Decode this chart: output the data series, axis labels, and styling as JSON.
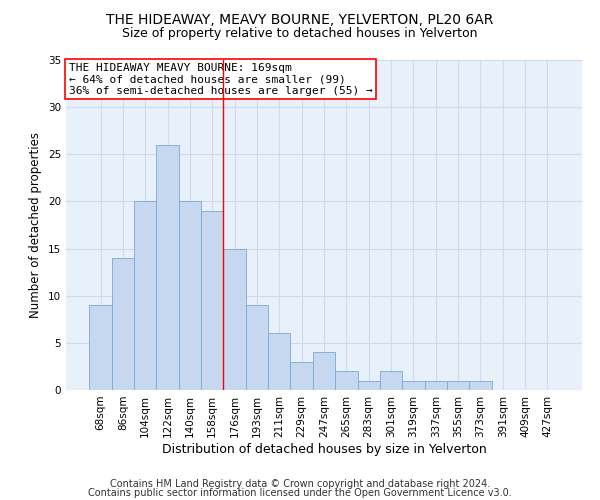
{
  "title1": "THE HIDEAWAY, MEAVY BOURNE, YELVERTON, PL20 6AR",
  "title2": "Size of property relative to detached houses in Yelverton",
  "xlabel": "Distribution of detached houses by size in Yelverton",
  "ylabel": "Number of detached properties",
  "categories": [
    "68sqm",
    "86sqm",
    "104sqm",
    "122sqm",
    "140sqm",
    "158sqm",
    "176sqm",
    "193sqm",
    "211sqm",
    "229sqm",
    "247sqm",
    "265sqm",
    "283sqm",
    "301sqm",
    "319sqm",
    "337sqm",
    "355sqm",
    "373sqm",
    "391sqm",
    "409sqm",
    "427sqm"
  ],
  "values": [
    9,
    14,
    20,
    26,
    20,
    19,
    15,
    9,
    6,
    3,
    4,
    2,
    1,
    2,
    1,
    1,
    1,
    1,
    0,
    0,
    0
  ],
  "bar_color": "#c5d8f0",
  "bar_edge_color": "#7aa8d4",
  "bar_width": 1.0,
  "vline_x": 5.5,
  "vline_color": "red",
  "ylim": [
    0,
    35
  ],
  "yticks": [
    0,
    5,
    10,
    15,
    20,
    25,
    30,
    35
  ],
  "annotation_line1": "THE HIDEAWAY MEAVY BOURNE: 169sqm",
  "annotation_line2": "← 64% of detached houses are smaller (99)",
  "annotation_line3": "36% of semi-detached houses are larger (55) →",
  "footer1": "Contains HM Land Registry data © Crown copyright and database right 2024.",
  "footer2": "Contains public sector information licensed under the Open Government Licence v3.0.",
  "bg_color": "#e8f0fa",
  "grid_color": "#d0daea",
  "title1_fontsize": 10,
  "title2_fontsize": 9,
  "xlabel_fontsize": 9,
  "ylabel_fontsize": 8.5,
  "tick_fontsize": 7.5,
  "footer_fontsize": 7,
  "annotation_fontsize": 8
}
